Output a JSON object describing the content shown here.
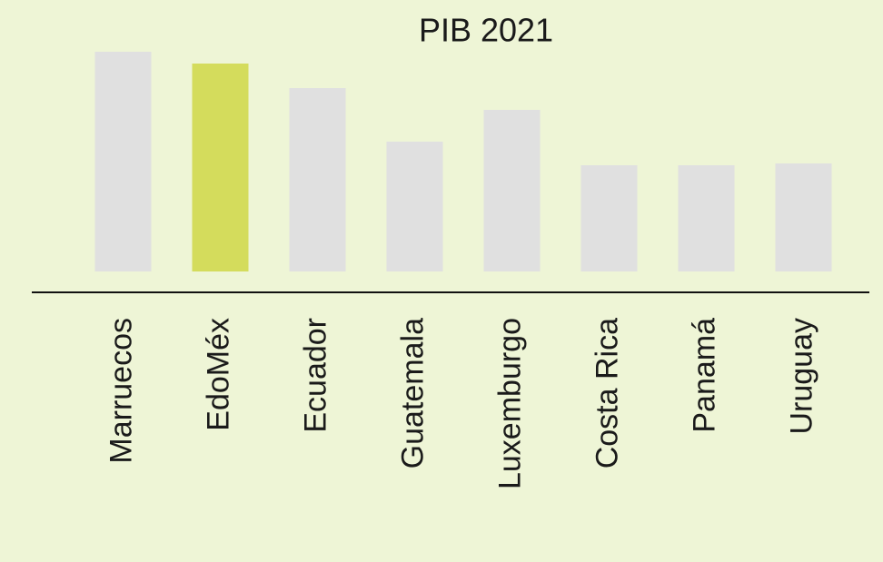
{
  "chart_data": {
    "type": "bar",
    "title": "PIB 2021",
    "categories": [
      "Marruecos",
      "EdoMéx",
      "Ecuador",
      "Guatemala",
      "Luxemburgo",
      "Costa Rica",
      "Panamá",
      "Uruguay"
    ],
    "values": [
      242,
      229,
      202,
      143,
      178,
      117,
      117,
      119
    ],
    "colors": [
      "#e0e0e0",
      "#d4dc5c",
      "#e0e0e0",
      "#e0e0e0",
      "#e0e0e0",
      "#e0e0e0",
      "#e0e0e0",
      "#e0e0e0"
    ],
    "ylim": [
      0,
      250
    ]
  }
}
